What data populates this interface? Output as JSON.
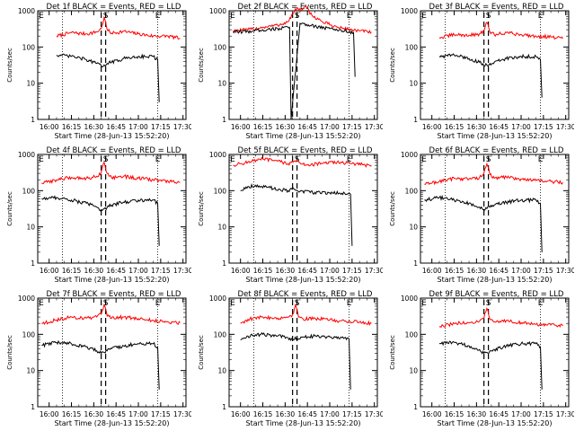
{
  "colors": {
    "events": "#000000",
    "lld": "#ff0000",
    "axis": "#000000"
  },
  "chart_data": [
    {
      "type": "line",
      "title": "Det 1f BLACK = Events, RED = LLD",
      "xlabel": "Start Time (28-Jun-13 15:52:20)",
      "ylabel": "Counts/sec",
      "xticks": [
        "16:00",
        "16:15",
        "16:30",
        "16:45",
        "17:00",
        "17:15",
        "17:30"
      ],
      "yticks": [
        "1",
        "10",
        "100",
        "1000"
      ],
      "ylim": [
        1,
        1000
      ],
      "yscale": "log",
      "markers": [
        {
          "label": "E",
          "x": "15:52"
        },
        {
          "label": "S",
          "x": "16:38"
        },
        {
          "label": "E",
          "x": "17:13"
        }
      ],
      "dotted_x": [
        "16:09",
        "17:13"
      ],
      "dashed_x": [
        "16:35",
        "16:38"
      ],
      "series": [
        {
          "name": "LLD",
          "color": "red",
          "x": [
            "16:05",
            "16:15",
            "16:25",
            "16:32",
            "16:35",
            "16:37",
            "16:39",
            "16:42",
            "16:50",
            "17:00",
            "17:10",
            "17:20",
            "17:28"
          ],
          "y": [
            200,
            250,
            230,
            260,
            320,
            650,
            300,
            240,
            270,
            230,
            200,
            200,
            175
          ]
        },
        {
          "name": "Events",
          "color": "black",
          "x": [
            "16:05",
            "16:15",
            "16:25",
            "16:32",
            "16:35",
            "16:37",
            "16:39",
            "16:42",
            "16:50",
            "17:00",
            "17:10",
            "17:13",
            "17:14"
          ],
          "y": [
            60,
            55,
            45,
            35,
            30,
            32,
            35,
            38,
            48,
            55,
            55,
            45,
            3
          ]
        }
      ]
    },
    {
      "type": "line",
      "title": "Det 2f BLACK = Events, RED = LLD",
      "xlabel": "Start Time (28-Jun-13 15:52:20)",
      "ylabel": "Counts/sec",
      "xticks": [
        "16:00",
        "16:15",
        "16:30",
        "16:45",
        "17:00",
        "17:15",
        "17:30"
      ],
      "yticks": [
        "1",
        "10",
        "100",
        "1000"
      ],
      "ylim": [
        1,
        1000
      ],
      "yscale": "log",
      "markers": [
        {
          "label": "E",
          "x": "15:52"
        },
        {
          "label": "S",
          "x": "16:38"
        },
        {
          "label": "E",
          "x": "17:13"
        }
      ],
      "dotted_x": [
        "16:09",
        "17:13"
      ],
      "dashed_x": [
        "16:35",
        "16:38"
      ],
      "series": [
        {
          "name": "LLD",
          "color": "red",
          "x": [
            "15:55",
            "16:05",
            "16:15",
            "16:25",
            "16:32",
            "16:35",
            "16:38",
            "16:41",
            "16:44",
            "16:48",
            "16:55",
            "17:05",
            "17:15",
            "17:20",
            "17:28"
          ],
          "y": [
            280,
            300,
            350,
            400,
            500,
            800,
            1200,
            1000,
            1300,
            750,
            500,
            350,
            300,
            280,
            260
          ]
        },
        {
          "name": "Events",
          "color": "black",
          "x": [
            "15:55",
            "16:05",
            "16:15",
            "16:25",
            "16:33",
            "16:34",
            "16:40",
            "16:50",
            "17:00",
            "17:10",
            "17:16",
            "17:17"
          ],
          "y": [
            260,
            270,
            300,
            320,
            350,
            1,
            450,
            380,
            320,
            280,
            250,
            15
          ]
        }
      ]
    },
    {
      "type": "line",
      "title": "Det 3f BLACK = Events, RED = LLD",
      "xlabel": "Start Time (28-Jun-13 15:52:20)",
      "ylabel": "Counts/sec",
      "xticks": [
        "16:00",
        "16:15",
        "16:30",
        "16:45",
        "17:00",
        "17:15",
        "17:30"
      ],
      "yticks": [
        "1",
        "10",
        "100",
        "1000"
      ],
      "ylim": [
        1,
        1000
      ],
      "yscale": "log",
      "markers": [
        {
          "label": "E",
          "x": "15:52"
        },
        {
          "label": "S",
          "x": "16:38"
        },
        {
          "label": "E",
          "x": "17:13"
        }
      ],
      "dotted_x": [
        "16:09",
        "17:13"
      ],
      "dashed_x": [
        "16:35",
        "16:38"
      ],
      "series": [
        {
          "name": "LLD",
          "color": "red",
          "x": [
            "16:05",
            "16:15",
            "16:25",
            "16:32",
            "16:35",
            "16:37",
            "16:39",
            "16:42",
            "16:50",
            "17:00",
            "17:10",
            "17:20",
            "17:28"
          ],
          "y": [
            180,
            220,
            210,
            230,
            280,
            480,
            260,
            220,
            250,
            220,
            200,
            190,
            170
          ]
        },
        {
          "name": "Events",
          "color": "black",
          "x": [
            "16:05",
            "16:15",
            "16:25",
            "16:32",
            "16:35",
            "16:37",
            "16:39",
            "16:42",
            "16:50",
            "17:00",
            "17:10",
            "17:13",
            "17:14"
          ],
          "y": [
            55,
            60,
            48,
            38,
            30,
            32,
            35,
            38,
            48,
            55,
            55,
            45,
            4
          ]
        }
      ]
    },
    {
      "type": "line",
      "title": "Det 4f BLACK = Events, RED = LLD",
      "xlabel": "Start Time (28-Jun-13 15:52:20)",
      "ylabel": "Counts/sec",
      "xticks": [
        "16:00",
        "16:15",
        "16:30",
        "16:45",
        "17:00",
        "17:15",
        "17:30"
      ],
      "yticks": [
        "1",
        "10",
        "100",
        "1000"
      ],
      "ylim": [
        1,
        1000
      ],
      "yscale": "log",
      "markers": [
        {
          "label": "E",
          "x": "15:52"
        },
        {
          "label": "S",
          "x": "16:38"
        },
        {
          "label": "E",
          "x": "17:13"
        }
      ],
      "dotted_x": [
        "16:09",
        "17:13"
      ],
      "dashed_x": [
        "16:35",
        "16:38"
      ],
      "series": [
        {
          "name": "LLD",
          "color": "red",
          "x": [
            "15:55",
            "16:05",
            "16:15",
            "16:25",
            "16:32",
            "16:35",
            "16:37",
            "16:39",
            "16:42",
            "16:50",
            "17:00",
            "17:10",
            "17:20",
            "17:28"
          ],
          "y": [
            160,
            200,
            230,
            220,
            250,
            320,
            600,
            300,
            230,
            250,
            220,
            200,
            180,
            170
          ]
        },
        {
          "name": "Events",
          "color": "black",
          "x": [
            "15:55",
            "16:05",
            "16:15",
            "16:25",
            "16:32",
            "16:35",
            "16:37",
            "16:39",
            "16:42",
            "16:50",
            "17:00",
            "17:10",
            "17:13",
            "17:14"
          ],
          "y": [
            60,
            65,
            55,
            45,
            35,
            30,
            32,
            35,
            40,
            48,
            55,
            55,
            45,
            3
          ]
        }
      ]
    },
    {
      "type": "line",
      "title": "Det 5f BLACK = Events, RED = LLD",
      "xlabel": "Start Time (28-Jun-13 15:52:20)",
      "ylabel": "Counts/sec",
      "xticks": [
        "16:00",
        "16:15",
        "16:30",
        "16:45",
        "17:00",
        "17:15",
        "17:30"
      ],
      "yticks": [
        "1",
        "10",
        "100",
        "1000"
      ],
      "ylim": [
        1,
        1000
      ],
      "yscale": "log",
      "markers": [
        {
          "label": "E",
          "x": "15:52"
        },
        {
          "label": "S",
          "x": "16:38"
        },
        {
          "label": "E",
          "x": "17:13"
        }
      ],
      "dotted_x": [
        "16:09",
        "17:13"
      ],
      "dashed_x": [
        "16:35",
        "16:38"
      ],
      "series": [
        {
          "name": "LLD",
          "color": "red",
          "x": [
            "15:55",
            "16:05",
            "16:15",
            "16:25",
            "16:32",
            "16:36",
            "16:40",
            "16:45",
            "16:55",
            "17:05",
            "17:15",
            "17:22",
            "17:28"
          ],
          "y": [
            500,
            620,
            750,
            650,
            560,
            650,
            580,
            520,
            560,
            620,
            560,
            520,
            500
          ]
        },
        {
          "name": "Events",
          "color": "black",
          "x": [
            "16:00",
            "16:05",
            "16:10",
            "16:20",
            "16:32",
            "16:36",
            "16:40",
            "16:50",
            "17:00",
            "17:10",
            "17:14",
            "17:15"
          ],
          "y": [
            100,
            130,
            140,
            120,
            100,
            110,
            95,
            90,
            88,
            85,
            80,
            3
          ]
        }
      ]
    },
    {
      "type": "line",
      "title": "Det 6f BLACK = Events, RED = LLD",
      "xlabel": "Start Time (28-Jun-13 15:52:20)",
      "ylabel": "Counts/sec",
      "xticks": [
        "16:00",
        "16:15",
        "16:30",
        "16:45",
        "17:00",
        "17:15",
        "17:30"
      ],
      "yticks": [
        "1",
        "10",
        "100",
        "1000"
      ],
      "ylim": [
        1,
        1000
      ],
      "yscale": "log",
      "markers": [
        {
          "label": "E",
          "x": "15:52"
        },
        {
          "label": "S",
          "x": "16:38"
        },
        {
          "label": "E",
          "x": "17:13"
        }
      ],
      "dotted_x": [
        "16:09",
        "17:13"
      ],
      "dashed_x": [
        "16:35",
        "16:38"
      ],
      "series": [
        {
          "name": "LLD",
          "color": "red",
          "x": [
            "15:55",
            "16:05",
            "16:15",
            "16:25",
            "16:32",
            "16:35",
            "16:37",
            "16:39",
            "16:42",
            "16:50",
            "17:00",
            "17:10",
            "17:20",
            "17:28"
          ],
          "y": [
            150,
            180,
            220,
            210,
            230,
            300,
            550,
            280,
            220,
            240,
            210,
            190,
            180,
            170
          ]
        },
        {
          "name": "Events",
          "color": "black",
          "x": [
            "15:55",
            "16:05",
            "16:15",
            "16:25",
            "16:32",
            "16:35",
            "16:37",
            "16:39",
            "16:42",
            "16:50",
            "17:00",
            "17:10",
            "17:13",
            "17:14"
          ],
          "y": [
            55,
            65,
            55,
            45,
            35,
            30,
            32,
            35,
            40,
            48,
            55,
            55,
            45,
            2
          ]
        }
      ]
    },
    {
      "type": "line",
      "title": "Det 7f BLACK = Events, RED = LLD",
      "xlabel": "Start Time (28-Jun-13 15:52:20)",
      "ylabel": "Counts/sec",
      "xticks": [
        "16:00",
        "16:15",
        "16:30",
        "16:45",
        "17:00",
        "17:15",
        "17:30"
      ],
      "yticks": [
        "1",
        "10",
        "100",
        "1000"
      ],
      "ylim": [
        1,
        1000
      ],
      "yscale": "log",
      "markers": [
        {
          "label": "E",
          "x": "15:52"
        },
        {
          "label": "S",
          "x": "16:38"
        },
        {
          "label": "E",
          "x": "17:13"
        }
      ],
      "dotted_x": [
        "16:09",
        "17:13"
      ],
      "dashed_x": [
        "16:35",
        "16:38"
      ],
      "series": [
        {
          "name": "LLD",
          "color": "red",
          "x": [
            "15:55",
            "16:05",
            "16:15",
            "16:25",
            "16:32",
            "16:35",
            "16:37",
            "16:39",
            "16:42",
            "16:50",
            "17:00",
            "17:10",
            "17:20",
            "17:28"
          ],
          "y": [
            200,
            250,
            300,
            280,
            300,
            360,
            650,
            320,
            280,
            300,
            270,
            240,
            220,
            210
          ]
        },
        {
          "name": "Events",
          "color": "black",
          "x": [
            "15:55",
            "16:05",
            "16:15",
            "16:25",
            "16:32",
            "16:35",
            "16:37",
            "16:39",
            "16:42",
            "16:50",
            "17:00",
            "17:10",
            "17:13",
            "17:14"
          ],
          "y": [
            50,
            60,
            55,
            45,
            35,
            30,
            32,
            35,
            40,
            48,
            55,
            55,
            45,
            3
          ]
        }
      ]
    },
    {
      "type": "line",
      "title": "Det 8f BLACK = Events, RED = LLD",
      "xlabel": "Start Time (28-Jun-13 15:52:20)",
      "ylabel": "Counts/sec",
      "xticks": [
        "16:00",
        "16:15",
        "16:30",
        "16:45",
        "17:00",
        "17:15",
        "17:30"
      ],
      "yticks": [
        "1",
        "10",
        "100",
        "1000"
      ],
      "ylim": [
        1,
        1000
      ],
      "yscale": "log",
      "markers": [
        {
          "label": "E",
          "x": "15:52"
        },
        {
          "label": "S",
          "x": "16:38"
        },
        {
          "label": "E",
          "x": "17:13"
        }
      ],
      "dotted_x": [
        "16:09",
        "17:13"
      ],
      "dashed_x": [
        "16:35",
        "16:38"
      ],
      "series": [
        {
          "name": "LLD",
          "color": "red",
          "x": [
            "16:00",
            "16:05",
            "16:15",
            "16:25",
            "16:32",
            "16:35",
            "16:37",
            "16:39",
            "16:42",
            "16:50",
            "17:00",
            "17:10",
            "17:20",
            "17:28"
          ],
          "y": [
            200,
            260,
            300,
            280,
            300,
            350,
            650,
            300,
            270,
            280,
            250,
            230,
            220,
            200
          ]
        },
        {
          "name": "Events",
          "color": "black",
          "x": [
            "16:00",
            "16:05",
            "16:15",
            "16:25",
            "16:32",
            "16:35",
            "16:38",
            "16:42",
            "16:50",
            "17:00",
            "17:10",
            "17:13",
            "17:14"
          ],
          "y": [
            70,
            90,
            100,
            90,
            80,
            75,
            80,
            85,
            90,
            85,
            80,
            75,
            3
          ]
        }
      ]
    },
    {
      "type": "line",
      "title": "Det 9f BLACK = Events, RED = LLD",
      "xlabel": "Start Time (28-Jun-13 15:52:20)",
      "ylabel": "Counts/sec",
      "xticks": [
        "16:00",
        "16:15",
        "16:30",
        "16:45",
        "17:00",
        "17:15",
        "17:30"
      ],
      "yticks": [
        "1",
        "10",
        "100",
        "1000"
      ],
      "ylim": [
        1,
        1000
      ],
      "yscale": "log",
      "markers": [
        {
          "label": "E",
          "x": "15:52"
        },
        {
          "label": "S",
          "x": "16:38"
        },
        {
          "label": "E",
          "x": "17:13"
        }
      ],
      "dotted_x": [
        "16:09",
        "17:13"
      ],
      "dashed_x": [
        "16:35",
        "16:38"
      ],
      "series": [
        {
          "name": "LLD",
          "color": "red",
          "x": [
            "16:05",
            "16:15",
            "16:25",
            "16:32",
            "16:35",
            "16:37",
            "16:39",
            "16:42",
            "16:50",
            "17:00",
            "17:10",
            "17:20",
            "17:28"
          ],
          "y": [
            160,
            200,
            210,
            230,
            280,
            520,
            260,
            220,
            240,
            210,
            190,
            180,
            170
          ]
        },
        {
          "name": "Events",
          "color": "black",
          "x": [
            "16:05",
            "16:15",
            "16:25",
            "16:32",
            "16:35",
            "16:37",
            "16:39",
            "16:42",
            "16:50",
            "17:00",
            "17:10",
            "17:13",
            "17:14"
          ],
          "y": [
            55,
            60,
            48,
            38,
            30,
            32,
            35,
            38,
            48,
            55,
            55,
            45,
            3
          ]
        }
      ]
    }
  ]
}
